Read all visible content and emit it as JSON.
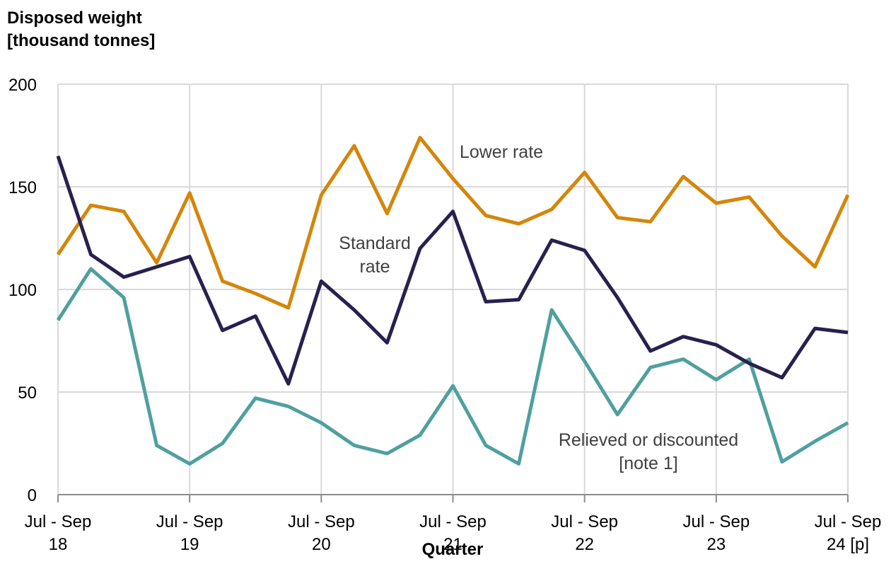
{
  "chart_data": {
    "type": "line",
    "ylabel_line1": "Disposed weight",
    "ylabel_line2": "[thousand tonnes]",
    "xlabel": "Quarter",
    "ylim": [
      0,
      200
    ],
    "yticks": [
      "0",
      "50",
      "100",
      "150",
      "200"
    ],
    "grid": true,
    "x_tick_labels": [
      {
        "line1": "Jul - Sep",
        "line2": "18"
      },
      {
        "line1": "Jul - Sep",
        "line2": "19"
      },
      {
        "line1": "Jul - Sep",
        "line2": "20"
      },
      {
        "line1": "Jul - Sep",
        "line2": "21"
      },
      {
        "line1": "Jul - Sep",
        "line2": "22"
      },
      {
        "line1": "Jul - Sep",
        "line2": "23"
      },
      {
        "line1": "Jul - Sep",
        "line2": "24 [p]"
      }
    ],
    "colors": {
      "lower": "#D4860B",
      "standard": "#28204F",
      "relieved": "#4FA09F",
      "grid": "#D9D9D9"
    },
    "series": [
      {
        "name": "Lower rate",
        "label_lines": [
          "Lower rate"
        ],
        "key": "lower",
        "values": [
          117,
          141,
          138,
          113,
          147,
          104,
          98,
          91,
          146,
          170,
          137,
          174,
          154,
          136,
          132,
          139,
          157,
          135,
          133,
          155,
          142,
          145,
          126,
          111,
          146
        ]
      },
      {
        "name": "Standard rate",
        "label_lines": [
          "Standard",
          "rate"
        ],
        "key": "standard",
        "values": [
          165,
          117,
          106,
          111,
          116,
          80,
          87,
          54,
          104,
          90,
          74,
          120,
          138,
          94,
          95,
          124,
          119,
          96,
          70,
          77,
          73,
          64,
          57,
          81,
          79
        ]
      },
      {
        "name": "Relieved or discounted [note 1]",
        "label_lines": [
          "Relieved or discounted",
          "[note 1]"
        ],
        "key": "relieved",
        "values": [
          85,
          110,
          96,
          24,
          15,
          25,
          47,
          43,
          35,
          24,
          20,
          29,
          53,
          24,
          15,
          90,
          65,
          39,
          62,
          66,
          56,
          66,
          16,
          26,
          35
        ]
      }
    ]
  }
}
